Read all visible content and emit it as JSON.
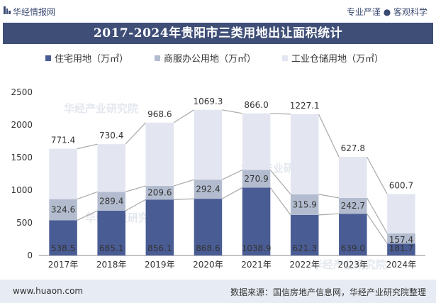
{
  "header": {
    "brand": "华经情报网",
    "tagline": "专业严谨 ● 客观科学",
    "title": "2017-2024年贵阳市三类用地出让面积统计"
  },
  "watermarks": [
    "华经产业研究院",
    "华经产业研究院",
    "华经产业研究院",
    "华经产业研究院"
  ],
  "footer": {
    "url": "www.huaon.com",
    "source": "数据来源：国信房地产信息网，华经产业研究院整理"
  },
  "colors": {
    "residential": "#4a5c94",
    "commercial": "#b3bccf",
    "industrial": "#e3e6f1"
  },
  "chart_data": {
    "type": "bar",
    "stacked": true,
    "categories": [
      "2017年",
      "2018年",
      "2019年",
      "2020年",
      "2021年",
      "2022年",
      "2023年",
      "2024年"
    ],
    "series": [
      {
        "name": "住宅用地（万㎡）",
        "values": [
          538.5,
          685.1,
          856.1,
          868.6,
          1038.9,
          621.3,
          639.0,
          181.7
        ]
      },
      {
        "name": "商服办公用地（万㎡）",
        "values": [
          324.6,
          289.4,
          209.6,
          292.4,
          270.9,
          315.9,
          242.7,
          157.4
        ]
      },
      {
        "name": "工业仓储用地（万㎡）",
        "values": [
          771.4,
          730.4,
          968.6,
          1069.3,
          866.0,
          1227.1,
          627.8,
          600.7
        ]
      }
    ],
    "ylim": [
      0,
      2500
    ],
    "yticks": [
      0,
      500,
      1000,
      1500,
      2000,
      2500
    ],
    "legend_position": "top",
    "connector_lines": true,
    "grid": false
  }
}
